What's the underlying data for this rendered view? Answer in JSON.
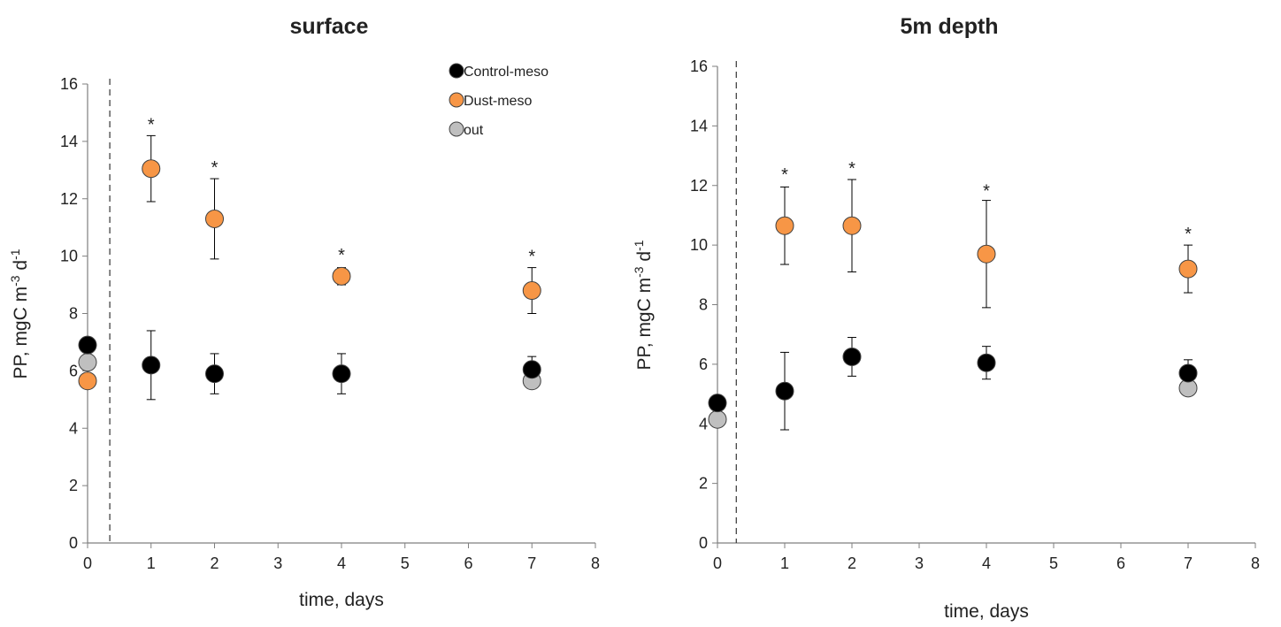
{
  "chart_data": [
    {
      "type": "scatter",
      "title": "surface",
      "xlabel": "time, days",
      "ylabel": "PP, mgC m-3 d-1",
      "ylabel_parts": {
        "base": "PP, mgC m",
        "sup1": "-3",
        "mid": " d",
        "sup2": "-1"
      },
      "xlim": [
        0,
        8
      ],
      "ylim": [
        0,
        16
      ],
      "xticks": [
        "0",
        "1",
        "2",
        "3",
        "4",
        "5",
        "6",
        "7",
        "8"
      ],
      "yticks": [
        "0",
        "2",
        "4",
        "6",
        "8",
        "10",
        "12",
        "14",
        "16"
      ],
      "dashed_vline_x": 0.35,
      "grid": false,
      "legend": "top-right",
      "series": [
        {
          "name": "Control-meso",
          "color": "#000000",
          "points": [
            {
              "x": 0,
              "y": 6.9,
              "err": 0
            },
            {
              "x": 1,
              "y": 6.2,
              "err": 1.2
            },
            {
              "x": 2,
              "y": 5.9,
              "err": 0.7
            },
            {
              "x": 4,
              "y": 5.9,
              "err": 0.7
            },
            {
              "x": 7,
              "y": 6.05,
              "err": 0.45
            }
          ]
        },
        {
          "name": "Dust-meso",
          "color": "#F79646",
          "points": [
            {
              "x": 0,
              "y": 5.65,
              "err": 0
            },
            {
              "x": 1,
              "y": 13.05,
              "err": 1.15
            },
            {
              "x": 2,
              "y": 11.3,
              "err": 1.4
            },
            {
              "x": 4,
              "y": 9.3,
              "err": 0.3
            },
            {
              "x": 7,
              "y": 8.8,
              "err": 0.8
            }
          ]
        },
        {
          "name": "out",
          "color": "#BFBFBF",
          "points": [
            {
              "x": 0,
              "y": 6.3,
              "err": 0
            },
            {
              "x": 7,
              "y": 5.65,
              "err": 0
            }
          ]
        }
      ],
      "significance_marks": [
        {
          "x": 1,
          "y": 14.2,
          "label": "*"
        },
        {
          "x": 2,
          "y": 12.7,
          "label": "*"
        },
        {
          "x": 4,
          "y": 9.65,
          "label": "*"
        },
        {
          "x": 7,
          "y": 9.6,
          "label": "*"
        }
      ]
    },
    {
      "type": "scatter",
      "title": "5m depth",
      "xlabel": "time, days",
      "ylabel": "PP, mgC m-3 d-1",
      "ylabel_parts": {
        "base": "PP, mgC m",
        "sup1": "-3",
        "mid": " d",
        "sup2": "-1"
      },
      "xlim": [
        0,
        8
      ],
      "ylim": [
        0,
        16
      ],
      "xticks": [
        "0",
        "1",
        "2",
        "3",
        "4",
        "5",
        "6",
        "7",
        "8"
      ],
      "yticks": [
        "0",
        "2",
        "4",
        "6",
        "8",
        "10",
        "12",
        "14",
        "16"
      ],
      "dashed_vline_x": 0.28,
      "grid": false,
      "legend": "none",
      "series": [
        {
          "name": "Control-meso",
          "color": "#000000",
          "points": [
            {
              "x": 0,
              "y": 4.7,
              "err": 0.25
            },
            {
              "x": 1,
              "y": 5.1,
              "err": 1.3
            },
            {
              "x": 2,
              "y": 6.25,
              "err": 0.65
            },
            {
              "x": 4,
              "y": 6.05,
              "err": 0.55
            },
            {
              "x": 7,
              "y": 5.7,
              "err": 0.45
            }
          ]
        },
        {
          "name": "Dust-meso",
          "color": "#F79646",
          "points": [
            {
              "x": 1,
              "y": 10.65,
              "err": 1.3
            },
            {
              "x": 2,
              "y": 10.65,
              "err": 1.55
            },
            {
              "x": 4,
              "y": 9.7,
              "err": 1.8
            },
            {
              "x": 7,
              "y": 9.2,
              "err": 0.8
            }
          ]
        },
        {
          "name": "out",
          "color": "#BFBFBF",
          "points": [
            {
              "x": 0,
              "y": 4.15,
              "err": 0
            },
            {
              "x": 7,
              "y": 5.2,
              "err": 0
            }
          ]
        }
      ],
      "significance_marks": [
        {
          "x": 1,
          "y": 12.0,
          "label": "*"
        },
        {
          "x": 2,
          "y": 12.2,
          "label": "*"
        },
        {
          "x": 4,
          "y": 11.45,
          "label": "*"
        },
        {
          "x": 7,
          "y": 10.0,
          "label": "*"
        }
      ]
    }
  ]
}
